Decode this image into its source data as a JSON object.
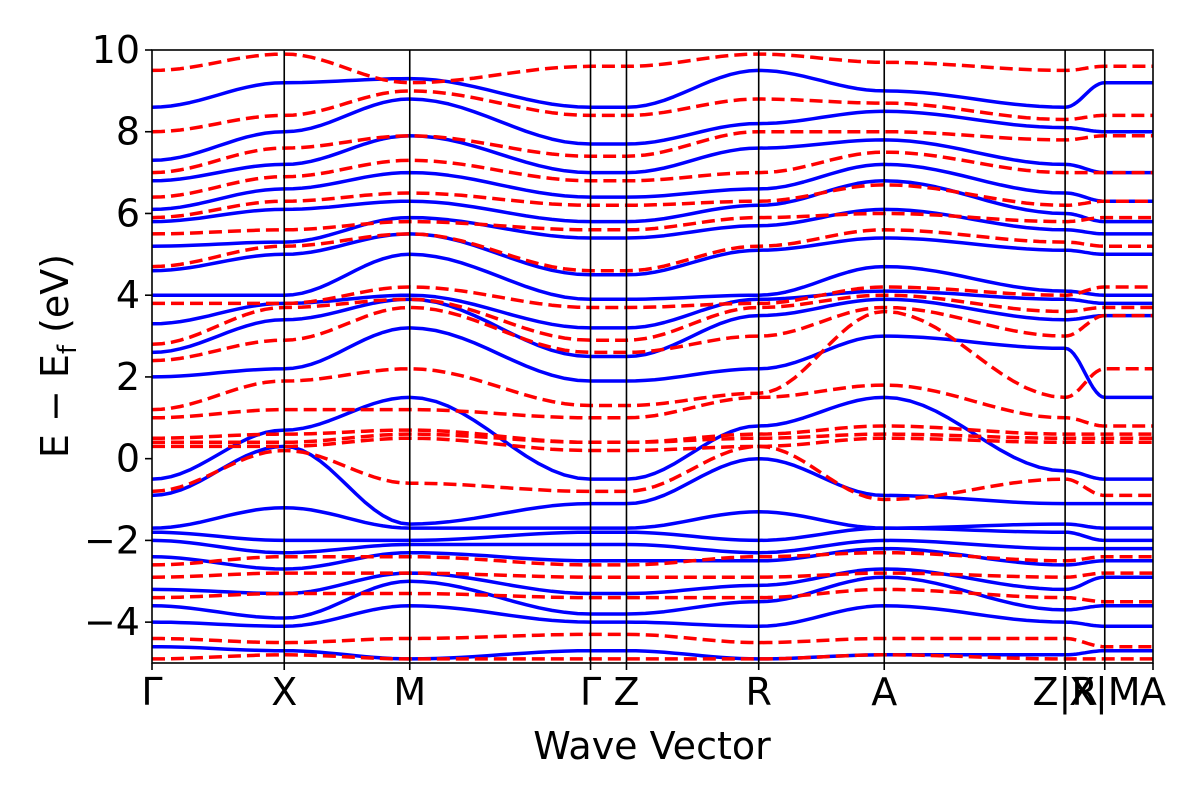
{
  "chart_data": {
    "type": "line",
    "xlabel": "Wave Vector",
    "ylabel": "E − E",
    "ylabel_sub": "f",
    "ylabel_unit": "(eV)",
    "ylim": [
      -5,
      10
    ],
    "yticks": [
      -4,
      -2,
      0,
      2,
      4,
      6,
      8,
      10
    ],
    "ytick_labels": [
      "−4",
      "−2",
      "0",
      "2",
      "4",
      "6",
      "8",
      "10"
    ],
    "grid": false,
    "legend": "none",
    "high_symbol_points": [
      {
        "label": "Γ",
        "k": 0.0
      },
      {
        "label": "X",
        "k": 0.1321
      },
      {
        "label": "M",
        "k": 0.2575
      },
      {
        "label": "Γ",
        "k": 0.4381
      },
      {
        "label": "Z",
        "k": 0.474
      },
      {
        "label": "R",
        "k": 0.6061
      },
      {
        "label": "A",
        "k": 0.7315
      },
      {
        "label": "Z|R",
        "k": 0.9122
      },
      {
        "label": "X|M",
        "k": 0.9518
      },
      {
        "label": "A",
        "k": 1.0
      }
    ],
    "colors": {
      "series_a": "#0000ff",
      "series_b": "#ff0000",
      "frame": "#000000"
    },
    "series": [
      {
        "style": "solid",
        "color": "#0000ff",
        "bands": [
          [
            -4.6,
            -4.7,
            -4.9,
            -4.7,
            -4.7,
            -4.9,
            -4.8,
            -4.8,
            -4.7
          ],
          [
            -4.0,
            -4.1,
            -3.6,
            -4.0,
            -4.0,
            -4.1,
            -3.6,
            -4.0,
            -4.1
          ],
          [
            -3.6,
            -3.9,
            -3.0,
            -3.8,
            -3.8,
            -3.5,
            -2.9,
            -3.7,
            -3.6
          ],
          [
            -3.2,
            -3.3,
            -2.8,
            -3.3,
            -3.3,
            -3.1,
            -2.7,
            -3.2,
            -2.9
          ],
          [
            -2.4,
            -2.7,
            -2.3,
            -2.5,
            -2.5,
            -2.5,
            -2.2,
            -2.6,
            -2.5
          ],
          [
            -2.0,
            -2.3,
            -2.1,
            -2.1,
            -2.1,
            -2.3,
            -2.0,
            -2.2,
            -2.2
          ],
          [
            -1.8,
            -2.0,
            -2.0,
            -1.8,
            -1.8,
            -2.0,
            -1.7,
            -1.8,
            -2.0
          ],
          [
            -1.7,
            -1.2,
            -1.7,
            -1.7,
            -1.7,
            -1.3,
            -1.7,
            -1.6,
            -1.7
          ],
          [
            -0.9,
            0.3,
            -1.6,
            -1.1,
            -1.1,
            0.0,
            -0.9,
            -1.1,
            -1.1
          ],
          [
            -0.5,
            0.7,
            1.5,
            -0.5,
            -0.5,
            0.8,
            1.5,
            -0.3,
            -0.5
          ],
          [
            2.0,
            2.2,
            3.2,
            1.9,
            1.9,
            2.2,
            3.0,
            2.7,
            1.5
          ],
          [
            2.6,
            3.4,
            3.9,
            2.5,
            2.5,
            3.5,
            3.9,
            3.4,
            3.5
          ],
          [
            3.3,
            3.8,
            4.0,
            3.2,
            3.2,
            3.9,
            4.1,
            3.9,
            3.8
          ],
          [
            4.0,
            4.0,
            5.0,
            3.9,
            3.9,
            4.0,
            4.7,
            4.1,
            4.0
          ],
          [
            4.6,
            5.0,
            5.5,
            4.5,
            4.5,
            5.1,
            5.4,
            5.1,
            5.0
          ],
          [
            5.2,
            5.3,
            5.9,
            5.4,
            5.4,
            5.7,
            6.1,
            5.6,
            5.5
          ],
          [
            5.8,
            6.1,
            6.3,
            5.8,
            5.8,
            6.2,
            6.8,
            6.0,
            5.8
          ],
          [
            6.1,
            6.6,
            7.0,
            6.4,
            6.4,
            6.6,
            7.2,
            6.5,
            6.3
          ],
          [
            6.8,
            7.2,
            7.9,
            7.0,
            7.0,
            7.6,
            7.8,
            7.2,
            7.0
          ],
          [
            7.3,
            8.0,
            8.8,
            7.7,
            7.7,
            8.2,
            8.5,
            8.1,
            8.0
          ],
          [
            8.6,
            9.2,
            9.3,
            8.6,
            8.6,
            9.5,
            9.0,
            8.6,
            9.2
          ]
        ]
      },
      {
        "style": "dashed",
        "color": "#ff0000",
        "bands": [
          [
            -4.9,
            -4.8,
            -4.9,
            -4.9,
            -4.9,
            -4.9,
            -4.8,
            -4.9,
            -4.9
          ],
          [
            -4.4,
            -4.5,
            -4.4,
            -4.3,
            -4.3,
            -4.5,
            -4.4,
            -4.4,
            -4.6
          ],
          [
            -3.4,
            -3.3,
            -3.3,
            -3.4,
            -3.4,
            -3.4,
            -3.2,
            -3.4,
            -3.5
          ],
          [
            -2.9,
            -2.8,
            -2.8,
            -2.9,
            -2.9,
            -2.9,
            -2.8,
            -2.9,
            -2.8
          ],
          [
            -2.6,
            -2.4,
            -2.4,
            -2.6,
            -2.6,
            -2.4,
            -2.3,
            -2.5,
            -2.4
          ],
          [
            -0.8,
            0.2,
            -0.6,
            -0.8,
            -0.8,
            0.3,
            -1.0,
            -0.5,
            -0.9
          ],
          [
            0.3,
            0.3,
            0.5,
            0.2,
            0.2,
            0.3,
            0.5,
            0.4,
            0.4
          ],
          [
            0.4,
            0.4,
            0.6,
            0.4,
            0.4,
            0.5,
            0.6,
            0.5,
            0.5
          ],
          [
            0.5,
            0.6,
            0.7,
            0.4,
            0.4,
            0.6,
            0.8,
            0.6,
            0.6
          ],
          [
            1.0,
            1.2,
            1.2,
            1.0,
            1.0,
            1.5,
            1.8,
            1.0,
            0.8
          ],
          [
            1.2,
            1.9,
            2.2,
            1.3,
            1.3,
            1.6,
            3.6,
            1.5,
            2.2
          ],
          [
            2.4,
            2.9,
            3.7,
            2.6,
            2.6,
            3.0,
            3.7,
            3.0,
            3.5
          ],
          [
            2.8,
            3.7,
            3.9,
            2.9,
            2.9,
            3.7,
            4.0,
            3.6,
            3.7
          ],
          [
            3.8,
            3.8,
            4.2,
            3.7,
            3.7,
            3.8,
            4.2,
            4.0,
            4.2
          ],
          [
            4.7,
            5.2,
            5.5,
            4.6,
            4.6,
            5.2,
            5.6,
            5.3,
            5.2
          ],
          [
            5.5,
            5.6,
            5.8,
            5.6,
            5.6,
            5.9,
            6.0,
            5.8,
            5.9
          ],
          [
            5.9,
            6.3,
            6.5,
            6.2,
            6.2,
            6.3,
            6.7,
            6.2,
            6.3
          ],
          [
            6.4,
            6.9,
            7.3,
            6.8,
            6.8,
            7.0,
            7.5,
            7.0,
            7.0
          ],
          [
            7.0,
            7.6,
            7.9,
            7.4,
            7.4,
            8.0,
            8.0,
            7.8,
            7.9
          ],
          [
            8.0,
            8.4,
            9.0,
            8.4,
            8.4,
            8.8,
            8.7,
            8.3,
            8.4
          ],
          [
            9.5,
            9.9,
            9.2,
            9.6,
            9.6,
            9.9,
            9.7,
            9.5,
            9.6
          ]
        ]
      }
    ]
  }
}
